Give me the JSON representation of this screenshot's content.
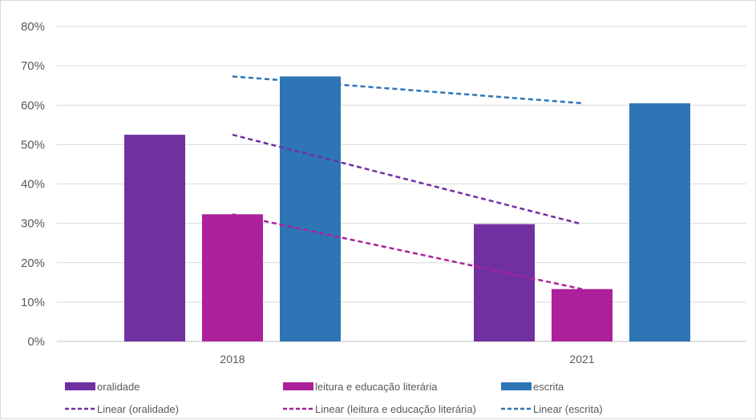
{
  "chart_data": {
    "type": "bar",
    "categories": [
      "2018",
      "2021"
    ],
    "series": [
      {
        "name": "oralidade",
        "values": [
          52.5,
          29.8
        ],
        "color": "#7030a0"
      },
      {
        "name": "leitura e educação literária",
        "values": [
          32.3,
          13.3
        ],
        "color": "#ad209c"
      },
      {
        "name": "escrita",
        "values": [
          67.3,
          60.5
        ],
        "color": "#2e75b6"
      }
    ],
    "trendlines": [
      {
        "name": "Linear (oralidade)",
        "series": "oralidade",
        "values": [
          52.5,
          29.8
        ],
        "color": "#7030a0"
      },
      {
        "name": "Linear (leitura e educação literária)",
        "series": "leitura e educação literária",
        "values": [
          32.3,
          13.3
        ],
        "color": "#ad209c"
      },
      {
        "name": "Linear (escrita)",
        "series": "escrita",
        "values": [
          67.3,
          60.5
        ],
        "color": "#2e75b6"
      }
    ],
    "y_ticks": [
      "0%",
      "10%",
      "20%",
      "30%",
      "40%",
      "50%",
      "60%",
      "70%",
      "80%"
    ],
    "ylim": [
      0,
      80
    ],
    "grid": true,
    "legend_position": "bottom"
  }
}
